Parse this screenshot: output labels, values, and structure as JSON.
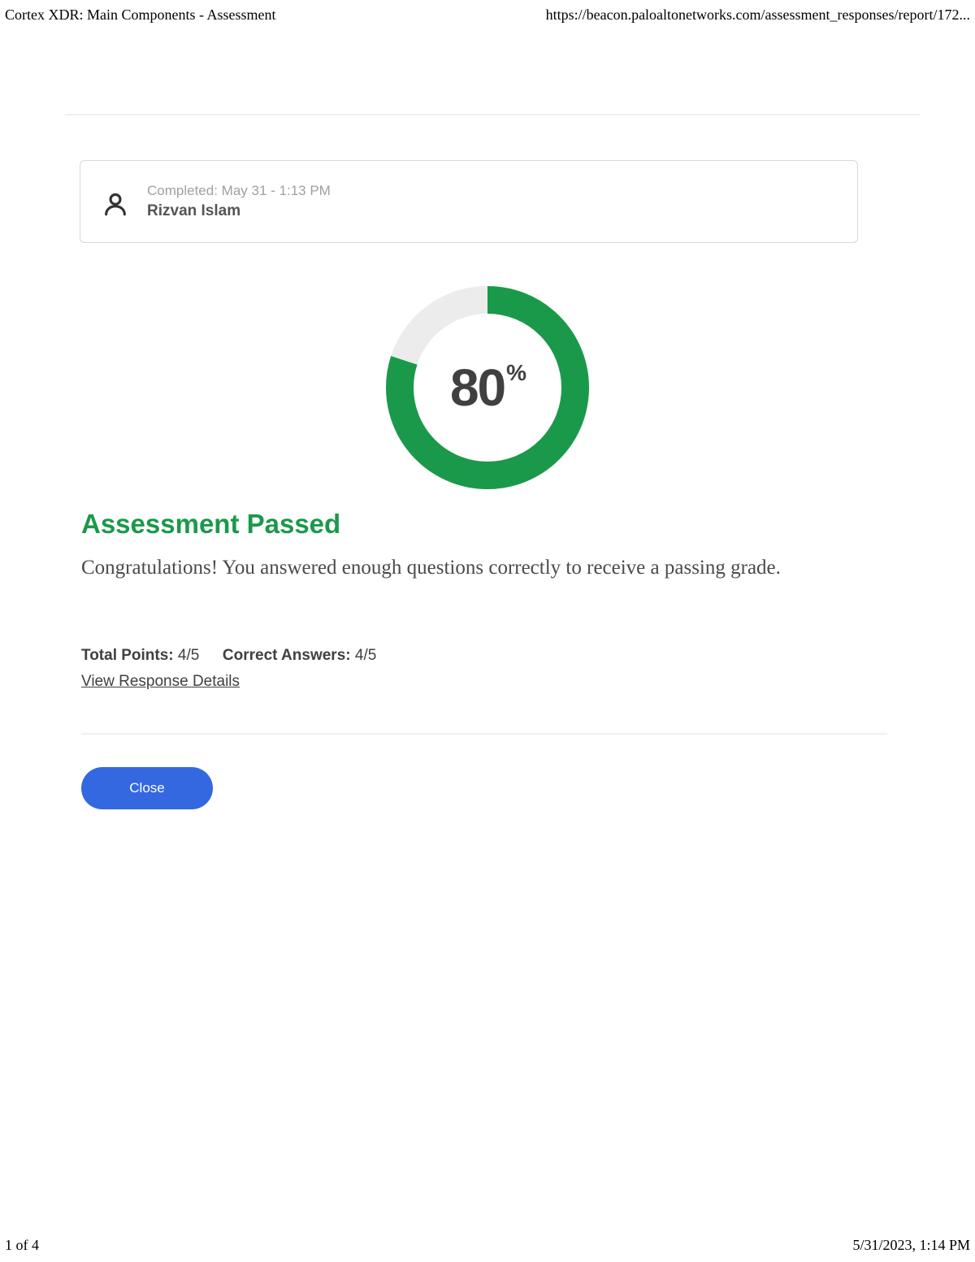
{
  "print_header": {
    "title": "Cortex XDR: Main Components - Assessment",
    "url": "https://beacon.paloaltonetworks.com/assessment_responses/report/172..."
  },
  "user_card": {
    "completed": "Completed: May 31 - 1:13 PM",
    "name": "Rizvan Islam"
  },
  "score_chart": {
    "percent": 80,
    "percent_label": "80",
    "percent_sign": "%",
    "ring_color": "#1b994a",
    "ring_bg": "#ececec",
    "ring_thickness": 34,
    "size": 250
  },
  "result": {
    "title": "Assessment Passed",
    "title_color": "#1b994a",
    "message": "Congratulations! You answered enough questions correctly to receive a passing grade."
  },
  "stats": {
    "total_points_label": "Total Points:",
    "total_points_value": " 4/5",
    "correct_label": "Correct Answers:",
    "correct_value": " 4/5"
  },
  "view_link": "View Response Details",
  "close_button": "Close",
  "print_footer": {
    "page": "1 of 4",
    "datetime": "5/31/2023, 1:14 PM"
  }
}
